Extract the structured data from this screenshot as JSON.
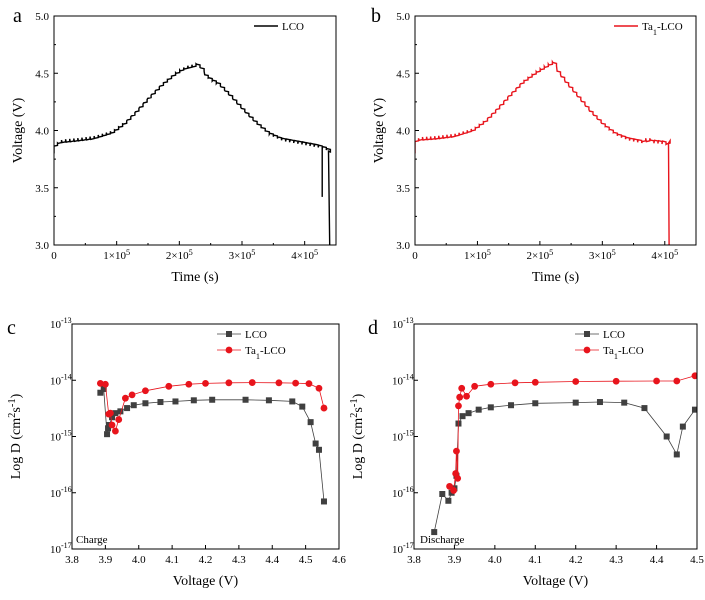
{
  "figure": {
    "panels": [
      {
        "letter": "a"
      },
      {
        "letter": "b"
      },
      {
        "letter": "c",
        "annotation": "Charge"
      },
      {
        "letter": "d",
        "annotation": "Discharge"
      }
    ]
  },
  "chart_data": [
    {
      "type": "line",
      "panel": "a",
      "xlabel": "Time (s)",
      "ylabel": "Voltage (V)",
      "xlim": [
        0,
        450000
      ],
      "ylim": [
        3.0,
        5.0
      ],
      "xticks": [
        0,
        100000,
        200000,
        300000,
        400000
      ],
      "xtick_labels": [
        "0",
        "1×10⁵",
        "2×10⁵",
        "3×10⁵",
        "4×10⁵"
      ],
      "yticks": [
        3.0,
        3.5,
        4.0,
        4.5,
        5.0
      ],
      "ytick_labels": [
        "3.0",
        "3.5",
        "4.0",
        "4.5",
        "5.0"
      ],
      "legend_position": "top-right",
      "grid": false,
      "series": [
        {
          "name": "LCO",
          "color": "#000000",
          "style": "stepped-gitt",
          "pulse_period": 6500,
          "x": [
            0,
            4000,
            10000,
            30000,
            60000,
            90000,
            110000,
            130000,
            150000,
            170000,
            190000,
            205000,
            220000,
            232000,
            236000,
            245000,
            260000,
            280000,
            300000,
            320000,
            340000,
            360000,
            380000,
            400000,
            420000,
            430000,
            433000,
            438000,
            440000
          ],
          "y": [
            3.87,
            3.89,
            3.9,
            3.91,
            3.93,
            3.98,
            4.06,
            4.17,
            4.29,
            4.4,
            4.49,
            4.54,
            4.56,
            4.58,
            4.5,
            4.46,
            4.41,
            4.3,
            4.18,
            4.07,
            3.98,
            3.93,
            3.91,
            3.89,
            3.87,
            3.85,
            3.85,
            3.82,
            3.0
          ],
          "tail_spikes": [
            {
              "x": 428000,
              "y": 3.42
            }
          ]
        }
      ]
    },
    {
      "type": "line",
      "panel": "b",
      "xlabel": "Time (s)",
      "ylabel": "Voltage (V)",
      "xlim": [
        0,
        450000
      ],
      "ylim": [
        3.0,
        5.0
      ],
      "xticks": [
        0,
        100000,
        200000,
        300000,
        400000
      ],
      "xtick_labels": [
        "0",
        "1×10⁵",
        "2×10⁵",
        "3×10⁵",
        "4×10⁵"
      ],
      "yticks": [
        3.0,
        3.5,
        4.0,
        4.5,
        5.0
      ],
      "ytick_labels": [
        "3.0",
        "3.5",
        "4.0",
        "4.5",
        "5.0"
      ],
      "legend_position": "top-right",
      "grid": false,
      "series": [
        {
          "name": "Ta₁-LCO",
          "color": "#e8141c",
          "style": "stepped-gitt",
          "pulse_period": 6500,
          "x": [
            0,
            4000,
            30000,
            60000,
            90000,
            110000,
            130000,
            150000,
            170000,
            190000,
            205000,
            215000,
            220000,
            225000,
            240000,
            260000,
            280000,
            300000,
            320000,
            340000,
            360000,
            380000,
            398000,
            400000,
            403000,
            406000,
            407000
          ],
          "y": [
            3.91,
            3.92,
            3.93,
            3.95,
            4.0,
            4.08,
            4.19,
            4.31,
            4.42,
            4.5,
            4.55,
            4.58,
            4.6,
            4.53,
            4.42,
            4.29,
            4.16,
            4.05,
            3.97,
            3.93,
            3.91,
            3.91,
            3.9,
            3.72,
            3.89,
            3.89,
            3.0
          ],
          "tail_spikes": []
        }
      ]
    },
    {
      "type": "scatter",
      "panel": "c",
      "xlabel": "Voltage (V)",
      "ylabel": "Log D (cm²s⁻¹)",
      "log_y": true,
      "xlim": [
        3.8,
        4.6
      ],
      "ylim": [
        1e-17,
        1e-13
      ],
      "xticks": [
        3.8,
        3.9,
        4.0,
        4.1,
        4.2,
        4.3,
        4.4,
        4.5,
        4.6
      ],
      "xtick_labels": [
        "3.8",
        "3.9",
        "4.0",
        "4.1",
        "4.2",
        "4.3",
        "4.4",
        "4.5",
        "4.6"
      ],
      "yticks": [
        1e-17,
        1e-16,
        1e-15,
        1e-14,
        1e-13
      ],
      "ytick_labels": [
        [
          "10",
          "-17"
        ],
        [
          "10",
          "-16"
        ],
        [
          "10",
          "-15"
        ],
        [
          "10",
          "-14"
        ],
        [
          "10",
          "-13"
        ]
      ],
      "legend_position": "top-right",
      "grid": false,
      "series": [
        {
          "name": "LCO",
          "color": "#404040",
          "marker": "square",
          "x": [
            3.885,
            3.895,
            3.905,
            3.908,
            3.912,
            3.92,
            3.93,
            3.945,
            3.965,
            3.985,
            4.02,
            4.065,
            4.11,
            4.165,
            4.22,
            4.32,
            4.39,
            4.46,
            4.49,
            4.515,
            4.53,
            4.54,
            4.555
          ],
          "y": [
            6e-15,
            7e-15,
            1.1e-15,
            1.4e-15,
            1.6e-15,
            2.2e-15,
            2.6e-15,
            2.8e-15,
            3.2e-15,
            3.6e-15,
            3.9e-15,
            4.1e-15,
            4.2e-15,
            4.4e-15,
            4.5e-15,
            4.5e-15,
            4.4e-15,
            4.2e-15,
            3.4e-15,
            1.8e-15,
            7.5e-16,
            5.8e-16,
            7e-17
          ]
        },
        {
          "name": "Ta₁-LCO",
          "color": "#e8141c",
          "marker": "circle",
          "x": [
            3.885,
            3.9,
            3.91,
            3.915,
            3.92,
            3.93,
            3.94,
            3.96,
            3.98,
            4.02,
            4.09,
            4.15,
            4.2,
            4.27,
            4.34,
            4.42,
            4.47,
            4.51,
            4.54,
            4.555
          ],
          "y": [
            8.8e-15,
            8.5e-15,
            2.5e-15,
            2.6e-15,
            1.6e-15,
            1.25e-15,
            2e-15,
            4.8e-15,
            5.5e-15,
            6.5e-15,
            7.8e-15,
            8.5e-15,
            8.8e-15,
            9e-15,
            9.1e-15,
            9e-15,
            8.9e-15,
            8.7e-15,
            7.2e-15,
            3.2e-15
          ]
        }
      ]
    },
    {
      "type": "scatter",
      "panel": "d",
      "xlabel": "Voltage (V)",
      "ylabel": "Log D (cm²s⁻¹)",
      "log_y": true,
      "xlim": [
        3.8,
        4.5
      ],
      "ylim": [
        1e-17,
        1e-13
      ],
      "xticks": [
        3.8,
        3.9,
        4.0,
        4.1,
        4.2,
        4.3,
        4.4,
        4.5
      ],
      "xtick_labels": [
        "3.8",
        "3.9",
        "4.0",
        "4.1",
        "4.2",
        "4.3",
        "4.4",
        "4.5"
      ],
      "yticks": [
        1e-17,
        1e-16,
        1e-15,
        1e-14,
        1e-13
      ],
      "ytick_labels": [
        [
          "10",
          "-17"
        ],
        [
          "10",
          "-16"
        ],
        [
          "10",
          "-15"
        ],
        [
          "10",
          "-14"
        ],
        [
          "10",
          "-13"
        ]
      ],
      "legend_position": "top-right",
      "grid": false,
      "series": [
        {
          "name": "LCO",
          "color": "#404040",
          "marker": "square",
          "x": [
            3.85,
            3.87,
            3.885,
            3.893,
            3.9,
            3.905,
            3.91,
            3.92,
            3.935,
            3.96,
            3.99,
            4.04,
            4.1,
            4.2,
            4.26,
            4.32,
            4.37,
            4.425,
            4.45,
            4.465,
            4.495
          ],
          "y": [
            2e-17,
            9.5e-17,
            7.2e-17,
            1e-16,
            1.2e-16,
            2e-16,
            1.7e-15,
            2.3e-15,
            2.6e-15,
            3e-15,
            3.3e-15,
            3.6e-15,
            3.9e-15,
            4e-15,
            4.1e-15,
            4e-15,
            3.2e-15,
            1e-15,
            4.8e-16,
            1.5e-15,
            3e-15
          ]
        },
        {
          "name": "Ta₁-LCO",
          "color": "#e8141c",
          "marker": "circle",
          "x": [
            3.888,
            3.898,
            3.903,
            3.905,
            3.908,
            3.91,
            3.913,
            3.918,
            3.93,
            3.95,
            3.99,
            4.05,
            4.1,
            4.2,
            4.3,
            4.4,
            4.45,
            4.495
          ],
          "y": [
            1.3e-16,
            1.1e-16,
            2.2e-16,
            5.5e-16,
            1.8e-16,
            3.5e-15,
            5e-15,
            7.2e-15,
            5.2e-15,
            7.8e-15,
            8.5e-15,
            9e-15,
            9.2e-15,
            9.5e-15,
            9.6e-15,
            9.7e-15,
            9.7e-15,
            1.2e-14
          ]
        }
      ]
    }
  ]
}
